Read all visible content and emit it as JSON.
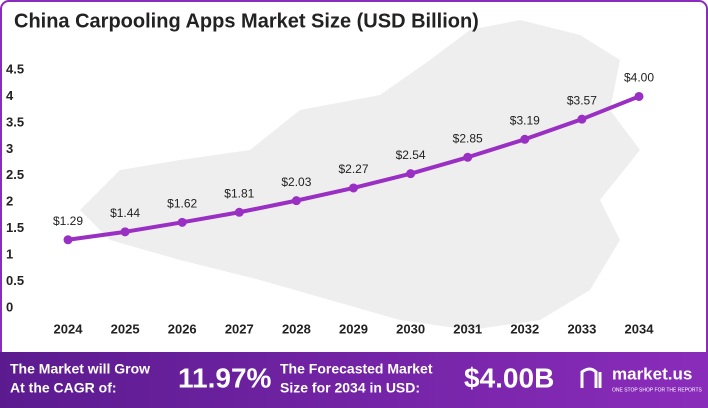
{
  "chart_data": {
    "type": "line",
    "title": "China Carpooling Apps Market Size (USD Billion)",
    "categories": [
      "2024",
      "2025",
      "2026",
      "2027",
      "2028",
      "2029",
      "2030",
      "2031",
      "2032",
      "2033",
      "2034"
    ],
    "series": [
      {
        "name": "Market Size",
        "color": "#9a2fc4",
        "values": [
          1.29,
          1.44,
          1.62,
          1.81,
          2.03,
          2.27,
          2.54,
          2.85,
          3.19,
          3.57,
          4.0
        ],
        "value_labels": [
          "$1.29",
          "$1.44",
          "$1.62",
          "$1.81",
          "$2.03",
          "$2.27",
          "$2.54",
          "$2.85",
          "$3.19",
          "$3.57",
          "$4.00"
        ]
      }
    ],
    "ylim": [
      0,
      4.5
    ],
    "yticks": [
      0,
      0.5,
      1,
      1.5,
      2,
      2.5,
      3,
      3.5,
      4,
      4.5
    ],
    "grid": false
  },
  "footer": {
    "cagr_label": [
      "The Market will Grow",
      "At the CAGR of:"
    ],
    "cagr_value": "11.97%",
    "forecast_label": [
      "The Forecasted Market",
      "Size for 2034 in USD:"
    ],
    "forecast_value": "$4.00B",
    "brand": "market.us",
    "tagline": "ONE STOP SHOP FOR THE REPORTS"
  }
}
